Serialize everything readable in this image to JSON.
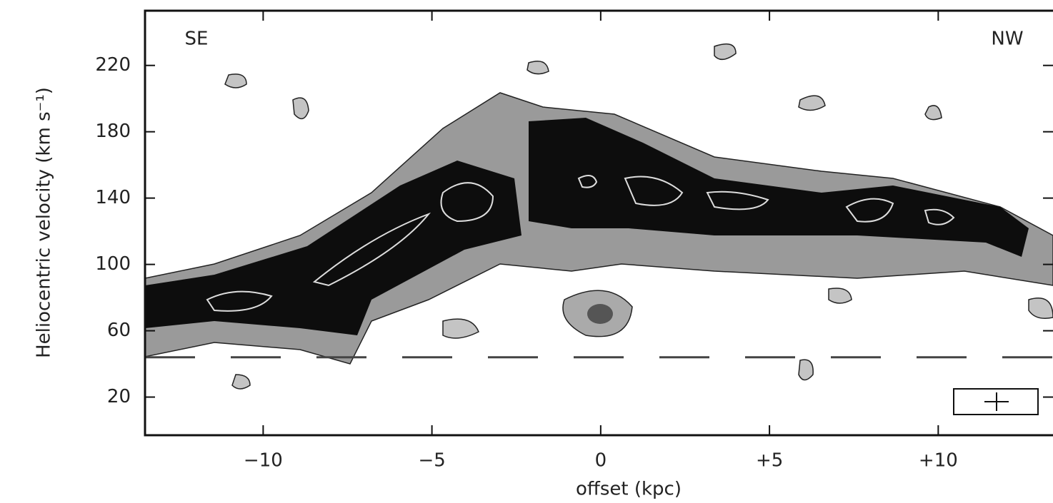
{
  "chart_data": {
    "type": "pv-diagram",
    "x_label": "offset (kpc)",
    "y_label": "Heliocentric velocity (km s⁻¹)",
    "annotations": [
      "SE",
      "NW"
    ],
    "xlim": [
      -13.5,
      13.4
    ],
    "ylim": [
      -3,
      253
    ],
    "xticks": [
      {
        "value": -10,
        "label": "−10"
      },
      {
        "value": -5,
        "label": "−5"
      },
      0,
      {
        "value": 5,
        "label": "+5"
      },
      {
        "value": 10,
        "label": "+10"
      }
    ],
    "yticks": [
      20,
      60,
      100,
      140,
      180,
      220
    ],
    "dashed_line_y": 44,
    "colormap": "grayscale"
  }
}
